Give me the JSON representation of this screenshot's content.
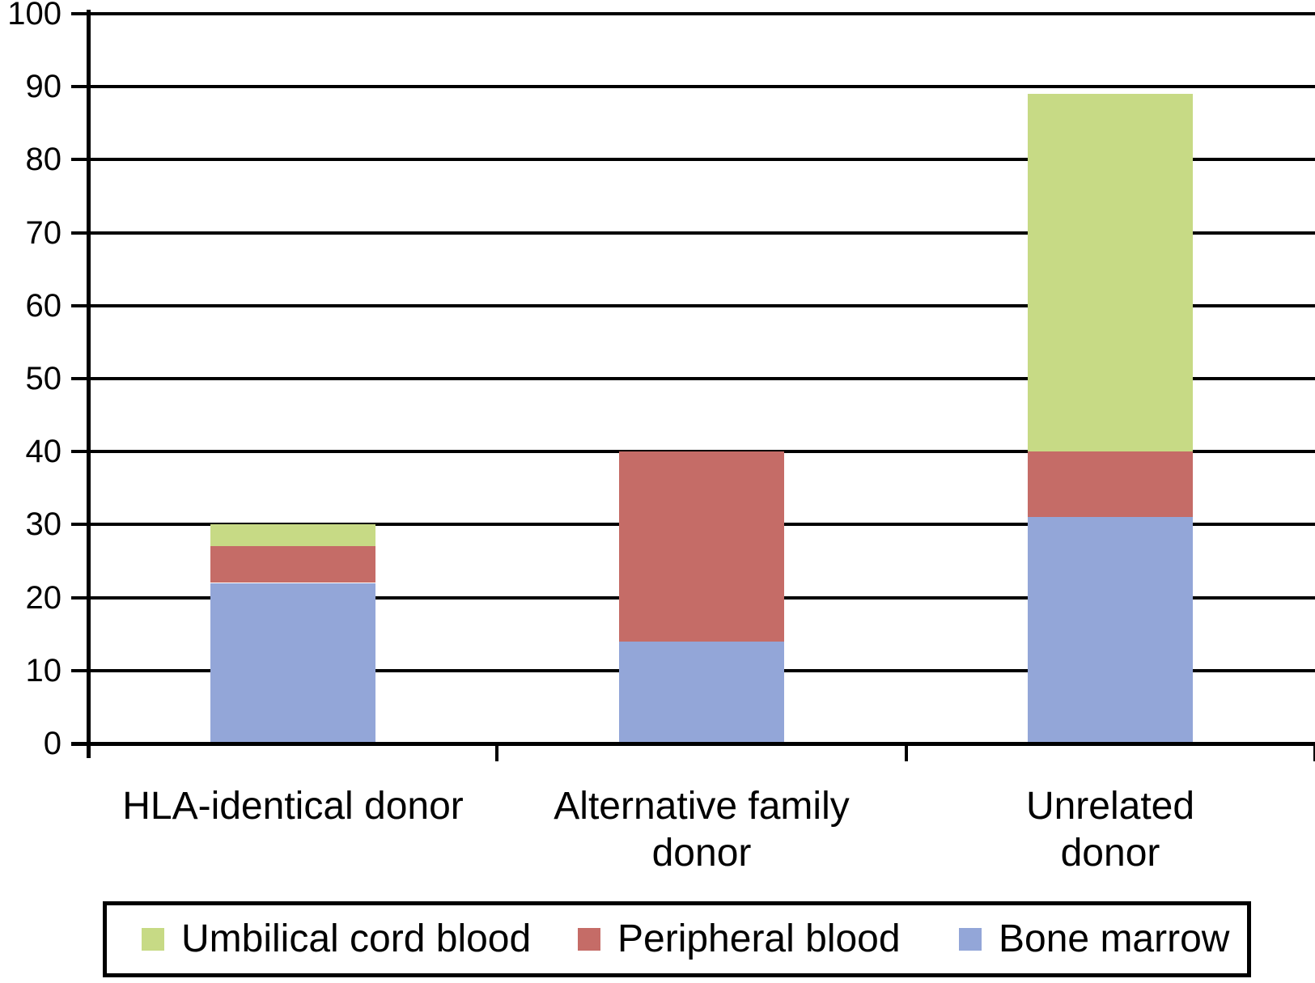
{
  "chart_data": {
    "type": "bar",
    "stacked": true,
    "title": "",
    "xlabel": "",
    "ylabel": "",
    "categories": [
      "HLA-identical donor",
      "Alternative family donor",
      "Unrelated donor"
    ],
    "category_label_lines": [
      [
        "HLA-identical donor"
      ],
      [
        "Alternative family",
        "donor"
      ],
      [
        "Unrelated",
        "donor"
      ]
    ],
    "series": [
      {
        "name": "Bone marrow",
        "color": "#93a6d8",
        "values": [
          22,
          14,
          31
        ]
      },
      {
        "name": "Peripheral blood",
        "color": "#c56c67",
        "values": [
          5,
          26,
          9
        ]
      },
      {
        "name": "Umbilical cord blood",
        "color": "#c7da85",
        "values": [
          3,
          0,
          49
        ]
      }
    ],
    "stack_totals": [
      30,
      40,
      89
    ],
    "ylim": [
      0,
      100
    ],
    "yticks": [
      0,
      10,
      20,
      30,
      40,
      50,
      60,
      70,
      80,
      90,
      100
    ],
    "grid": true,
    "gridline_color": "#000000",
    "axis_color": "#000000",
    "legend_position": "bottom"
  },
  "legend": {
    "items": [
      {
        "label": "Umbilical cord blood",
        "color": "#c7da85"
      },
      {
        "label": "Peripheral blood",
        "color": "#c56c67"
      },
      {
        "label": "Bone marrow",
        "color": "#93a6d8"
      }
    ]
  }
}
